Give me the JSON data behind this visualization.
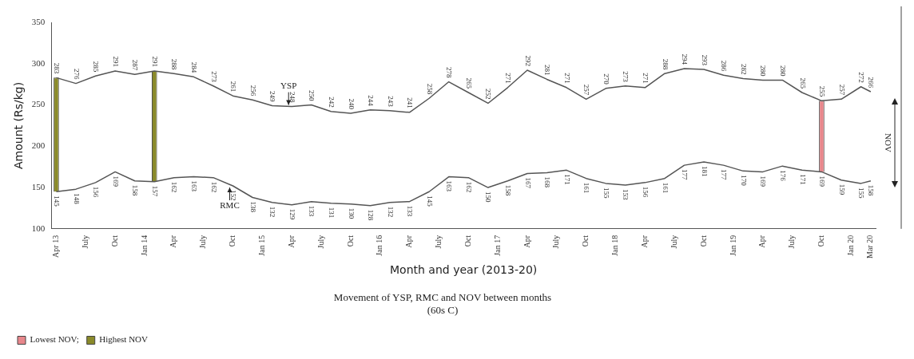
{
  "chart_data": {
    "type": "line",
    "title": "Movement of YSP, RMC and NOV between months",
    "subtitle": "(60s C)",
    "xlabel": "Month and year (2013-20)",
    "ylabel": "Amount (Rs/kg)",
    "categories": [
      "Apr 13",
      null,
      null,
      "July",
      null,
      null,
      "Oct",
      null,
      null,
      "Jan 14",
      null,
      null,
      "Apr",
      null,
      null,
      "July",
      null,
      null,
      "Oct",
      null,
      null,
      "Jan 15",
      null,
      null,
      "Apr",
      null,
      null,
      "July",
      null,
      null,
      "Oct",
      null,
      null,
      "Jan 16",
      null,
      null,
      "Apr",
      null,
      null,
      "July",
      null,
      null,
      "Oct",
      null,
      null,
      "Jan 17",
      null,
      null,
      "Apr",
      null,
      null,
      "July",
      null,
      null,
      "Oct",
      null,
      null,
      "Jan 18",
      null,
      null,
      "Apr",
      null,
      null,
      "July",
      null,
      null,
      "Oct",
      null,
      null,
      "Jan 19",
      null,
      null,
      "Apr",
      null,
      null,
      "July",
      null,
      null,
      "Oct",
      null,
      null,
      "Jan 20",
      null,
      "Mar 20"
    ],
    "series": [
      {
        "name": "YSP",
        "color": "#555555",
        "value_labels": [
          "283",
          null,
          "276",
          null,
          "285",
          null,
          "291",
          null,
          "287",
          null,
          "291",
          null,
          "288",
          null,
          "284",
          null,
          "273",
          null,
          "261",
          null,
          "256",
          null,
          "249",
          null,
          "248",
          null,
          "250",
          null,
          "242",
          null,
          "240",
          null,
          "244",
          null,
          "243",
          null,
          "241",
          null,
          "258",
          null,
          "278",
          null,
          "265",
          null,
          "252",
          null,
          "271",
          null,
          "292",
          null,
          "281",
          null,
          "271",
          null,
          "257",
          null,
          "270",
          null,
          "273",
          null,
          "271",
          null,
          "288",
          null,
          "294",
          null,
          "293",
          null,
          "286",
          null,
          "282",
          null,
          "280",
          null,
          "280",
          null,
          "265",
          null,
          "255",
          null,
          "257",
          null,
          "272",
          "266"
        ],
        "values": [
          283,
          null,
          276,
          null,
          285,
          null,
          291,
          null,
          287,
          null,
          291,
          null,
          288,
          null,
          284,
          null,
          273,
          null,
          261,
          null,
          256,
          null,
          249,
          null,
          248,
          null,
          250,
          null,
          242,
          null,
          240,
          null,
          244,
          null,
          243,
          null,
          241,
          null,
          258,
          null,
          278,
          null,
          265,
          null,
          252,
          null,
          271,
          null,
          292,
          null,
          281,
          null,
          271,
          null,
          257,
          null,
          270,
          null,
          273,
          null,
          271,
          null,
          288,
          null,
          294,
          null,
          293,
          null,
          286,
          null,
          282,
          null,
          280,
          null,
          280,
          null,
          265,
          null,
          255,
          null,
          257,
          null,
          272,
          266
        ]
      },
      {
        "name": "RMC",
        "color": "#555555",
        "value_labels": [
          "145",
          null,
          "148",
          null,
          "156",
          null,
          "169",
          null,
          "158",
          null,
          "157",
          null,
          "162",
          null,
          "163",
          null,
          "162",
          null,
          "152",
          null,
          "138",
          null,
          "132",
          null,
          "129",
          null,
          "133",
          null,
          "131",
          null,
          "130",
          null,
          "128",
          null,
          "132",
          null,
          "133",
          null,
          "145",
          null,
          "163",
          null,
          "162",
          null,
          "150",
          null,
          "158",
          null,
          "167",
          null,
          "168",
          null,
          "171",
          null,
          "161",
          null,
          "155",
          null,
          "153",
          null,
          "156",
          null,
          "161",
          null,
          "177",
          null,
          "181",
          null,
          "177",
          null,
          "170",
          null,
          "169",
          null,
          "176",
          null,
          "171",
          null,
          "169",
          null,
          "159",
          null,
          "155",
          "158"
        ],
        "values": [
          145,
          null,
          148,
          null,
          156,
          null,
          169,
          null,
          158,
          null,
          157,
          null,
          162,
          null,
          163,
          null,
          162,
          null,
          152,
          null,
          138,
          null,
          132,
          null,
          129,
          null,
          133,
          null,
          131,
          null,
          130,
          null,
          128,
          null,
          132,
          null,
          133,
          null,
          145,
          null,
          163,
          null,
          162,
          null,
          150,
          null,
          158,
          null,
          167,
          null,
          168,
          null,
          171,
          null,
          161,
          null,
          155,
          null,
          153,
          null,
          156,
          null,
          161,
          null,
          177,
          null,
          181,
          null,
          177,
          null,
          170,
          null,
          169,
          null,
          176,
          null,
          171,
          null,
          169,
          null,
          159,
          null,
          155,
          158
        ]
      },
      {
        "name": "Lowest NOV;",
        "type": "bar",
        "color": "#e8878c",
        "base": [
          null,
          null,
          null,
          null,
          null,
          null,
          null,
          null,
          null,
          null,
          null,
          null,
          null,
          null,
          null,
          null,
          null,
          null,
          null,
          null,
          null,
          null,
          null,
          null,
          null,
          null,
          null,
          null,
          null,
          null,
          null,
          null,
          null,
          null,
          null,
          null,
          null,
          null,
          null,
          null,
          null,
          null,
          null,
          null,
          null,
          null,
          null,
          null,
          null,
          null,
          null,
          null,
          null,
          null,
          null,
          null,
          null,
          null,
          null,
          null,
          null,
          null,
          null,
          null,
          null,
          null,
          null,
          null,
          null,
          null,
          null,
          null,
          null,
          null,
          null,
          null,
          null,
          null,
          169,
          null,
          null,
          null,
          null,
          null
        ],
        "values": [
          null,
          null,
          null,
          null,
          null,
          null,
          null,
          null,
          null,
          null,
          null,
          null,
          null,
          null,
          null,
          null,
          null,
          null,
          null,
          null,
          null,
          null,
          null,
          null,
          null,
          null,
          null,
          null,
          null,
          null,
          null,
          null,
          null,
          null,
          null,
          null,
          null,
          null,
          null,
          null,
          null,
          null,
          null,
          null,
          null,
          null,
          null,
          null,
          null,
          null,
          null,
          null,
          null,
          null,
          null,
          null,
          null,
          null,
          null,
          null,
          null,
          null,
          null,
          null,
          null,
          null,
          null,
          null,
          null,
          null,
          null,
          null,
          null,
          null,
          null,
          null,
          null,
          null,
          86,
          null,
          null,
          null,
          null,
          null
        ]
      },
      {
        "name": "Highest NOV",
        "type": "bar",
        "color": "#8a8a2a",
        "base": [
          145,
          null,
          null,
          null,
          null,
          null,
          null,
          null,
          null,
          null,
          157,
          null,
          null,
          null,
          null,
          null,
          null,
          null,
          null,
          null,
          null,
          null,
          null,
          null,
          null,
          null,
          null,
          null,
          null,
          null,
          null,
          null,
          null,
          null,
          null,
          null,
          null,
          null,
          null,
          null,
          null,
          null,
          null,
          null,
          null,
          null,
          null,
          null,
          null,
          null,
          null,
          null,
          null,
          null,
          null,
          null,
          null,
          null,
          null,
          null,
          null,
          null,
          null,
          null,
          null,
          null,
          null,
          null,
          null,
          null,
          null,
          null,
          null,
          null,
          null,
          null,
          null,
          null,
          null,
          null,
          null,
          null,
          null,
          null
        ],
        "values": [
          138,
          null,
          null,
          null,
          null,
          null,
          null,
          null,
          null,
          null,
          134,
          null,
          null,
          null,
          null,
          null,
          null,
          null,
          null,
          null,
          null,
          null,
          null,
          null,
          null,
          null,
          null,
          null,
          null,
          null,
          null,
          null,
          null,
          null,
          null,
          null,
          null,
          null,
          null,
          null,
          null,
          null,
          null,
          null,
          null,
          null,
          null,
          null,
          null,
          null,
          null,
          null,
          null,
          null,
          null,
          null,
          null,
          null,
          null,
          null,
          null,
          null,
          null,
          null,
          null,
          null,
          null,
          null,
          null,
          null,
          null,
          null,
          null,
          null,
          null,
          null,
          null,
          null,
          null,
          null,
          null,
          null,
          null,
          null
        ]
      }
    ],
    "ylim": [
      100,
      350
    ],
    "yticks": [
      100,
      150,
      200,
      250,
      300,
      350
    ],
    "grid": false,
    "legend": "bottom left",
    "marker": "none",
    "line_style": "solid",
    "annotations": [
      "NOV"
    ]
  }
}
